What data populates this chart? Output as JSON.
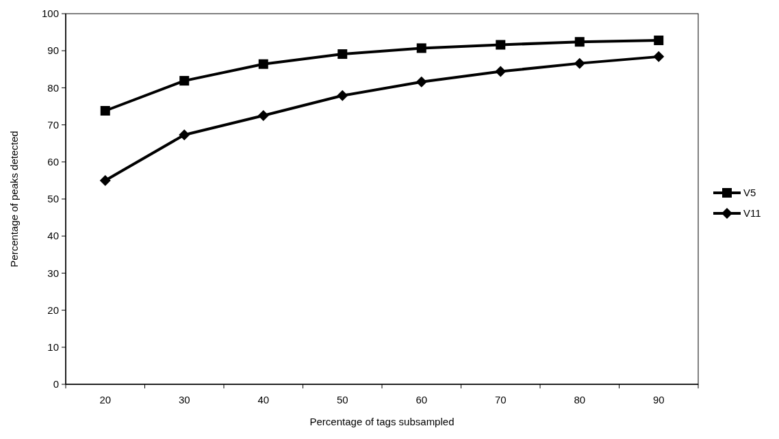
{
  "chart_data": {
    "type": "line",
    "xlabel": "Percentage of tags subsampled",
    "ylabel": "Percentage of peaks detected",
    "categories": [
      "20",
      "30",
      "40",
      "50",
      "60",
      "70",
      "80",
      "90"
    ],
    "series": [
      {
        "name": "V5",
        "color": "#000000",
        "marker": "square",
        "values": [
          73.8,
          81.9,
          86.4,
          89.1,
          90.7,
          91.6,
          92.4,
          92.8
        ]
      },
      {
        "name": "V11",
        "color": "#000000",
        "marker": "diamond",
        "values": [
          55.0,
          67.3,
          72.5,
          77.9,
          81.6,
          84.4,
          86.6,
          88.4
        ]
      }
    ],
    "ylim": [
      0,
      100
    ],
    "yticks": [
      0,
      10,
      20,
      30,
      40,
      50,
      60,
      70,
      80,
      90,
      100
    ],
    "grid": false,
    "legend": "right",
    "line_style": "solid"
  }
}
